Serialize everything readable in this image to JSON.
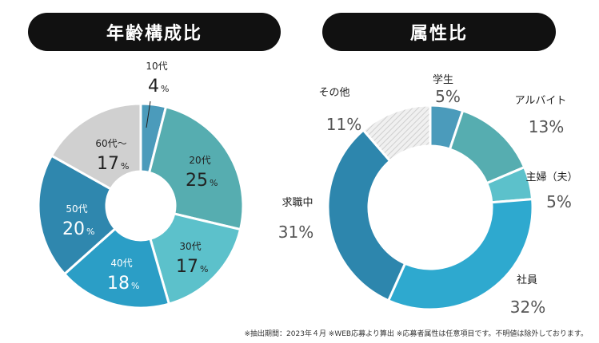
{
  "titles": {
    "age": "年齢構成比",
    "attribute": "属性比"
  },
  "footnote": "※抽出期間：2023年４月 ※WEB応募より算出 ※応募者属性は任意項目です。不明値は除外しております。",
  "chart_data": [
    {
      "type": "pie",
      "title": "年齢構成比",
      "series": [
        {
          "label": "10代",
          "value": 4,
          "color": "#4b9bbb"
        },
        {
          "label": "20代",
          "value": 25,
          "color": "#56adb0"
        },
        {
          "label": "30代",
          "value": 17,
          "color": "#5cc1cb"
        },
        {
          "label": "40代",
          "value": 18,
          "color": "#2b9ec6"
        },
        {
          "label": "50代",
          "value": 20,
          "color": "#2f87ae"
        },
        {
          "label": "60代～",
          "value": 17,
          "color": "#d0d0d0"
        }
      ]
    },
    {
      "type": "pie",
      "title": "属性比",
      "series": [
        {
          "label": "学生",
          "value": 5,
          "color": "#4b9bbb"
        },
        {
          "label": "アルバイト",
          "value": 13,
          "color": "#56adb0"
        },
        {
          "label": "主婦（夫）",
          "value": 5,
          "color": "#5cc1cb"
        },
        {
          "label": "社員",
          "value": 32,
          "color": "#2ea9cf"
        },
        {
          "label": "求職中",
          "value": 31,
          "color": "#2d86ad"
        },
        {
          "label": "その他",
          "value": 11,
          "color": "hatch"
        }
      ]
    }
  ]
}
